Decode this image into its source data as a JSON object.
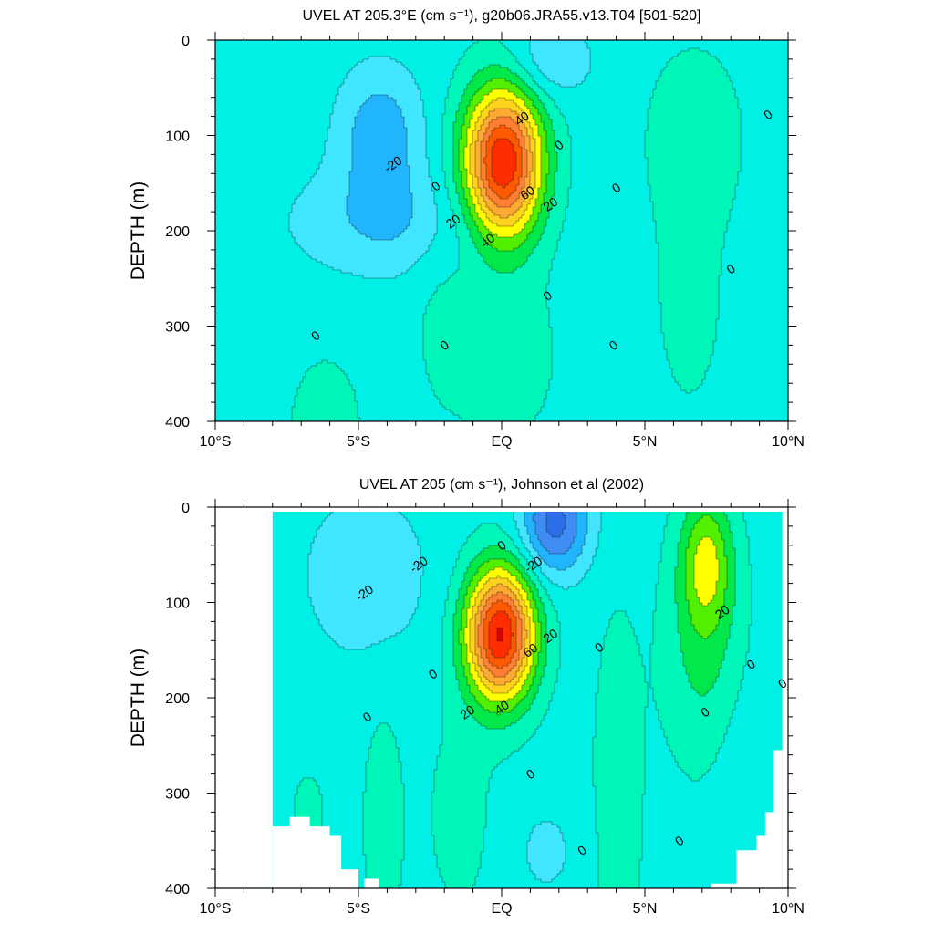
{
  "chart_data": [
    {
      "type": "contour",
      "title": "UVEL AT 205.3°E (cm s⁻¹), g20b06.JRA55.v13.T04 [501-520]",
      "ylabel": "DEPTH (m)",
      "xlabel": "",
      "xlim": [
        -10,
        10
      ],
      "ylim": [
        0,
        400
      ],
      "y_inverted": true,
      "xticks": [
        -10,
        -5,
        0,
        5,
        10
      ],
      "xtick_labels": [
        "10°S",
        "5°S",
        "EQ",
        "5°N",
        "10°N"
      ],
      "yticks": [
        0,
        100,
        200,
        300,
        400
      ],
      "ytick_labels": [
        "0",
        "100",
        "200",
        "300",
        "400"
      ],
      "contour_interval": 10,
      "max_value": 90,
      "core": {
        "lat": 0.0,
        "depth": 125
      },
      "contour_labels": [
        {
          "text": "40",
          "lat": 0.7,
          "depth": 82
        },
        {
          "text": "0",
          "lat": 2.0,
          "depth": 110
        },
        {
          "text": "-20",
          "lat": -3.8,
          "depth": 130
        },
        {
          "text": "0",
          "lat": -2.3,
          "depth": 153
        },
        {
          "text": "60",
          "lat": 0.9,
          "depth": 160
        },
        {
          "text": "0",
          "lat": 4.0,
          "depth": 155
        },
        {
          "text": "20",
          "lat": 1.7,
          "depth": 172
        },
        {
          "text": "20",
          "lat": -1.7,
          "depth": 190
        },
        {
          "text": "40",
          "lat": -0.5,
          "depth": 210
        },
        {
          "text": "0",
          "lat": 9.3,
          "depth": 78
        },
        {
          "text": "0",
          "lat": 8.0,
          "depth": 240
        },
        {
          "text": "0",
          "lat": 1.6,
          "depth": 268
        },
        {
          "text": "0",
          "lat": -6.5,
          "depth": 310
        },
        {
          "text": "0",
          "lat": -2.0,
          "depth": 320
        },
        {
          "text": "0",
          "lat": 3.9,
          "depth": 320
        }
      ]
    },
    {
      "type": "contour",
      "title": "UVEL AT 205 (cm s⁻¹), Johnson et al (2002)",
      "ylabel": "DEPTH (m)",
      "xlabel": "",
      "xlim": [
        -10,
        10
      ],
      "ylim": [
        0,
        400
      ],
      "y_inverted": true,
      "xticks": [
        -10,
        -5,
        0,
        5,
        10
      ],
      "xtick_labels": [
        "10°S",
        "5°S",
        "EQ",
        "5°N",
        "10°N"
      ],
      "yticks": [
        0,
        100,
        200,
        300,
        400
      ],
      "ytick_labels": [
        "0",
        "100",
        "200",
        "300",
        "400"
      ],
      "contour_interval": 10,
      "max_value": 90,
      "core": {
        "lat": -0.1,
        "depth": 130
      },
      "data_lat_range": [
        -8,
        9.8
      ],
      "contour_labels": [
        {
          "text": "0",
          "lat": 0.0,
          "depth": 40
        },
        {
          "text": "-20",
          "lat": -2.9,
          "depth": 60
        },
        {
          "text": "-20",
          "lat": 1.1,
          "depth": 60
        },
        {
          "text": "-20",
          "lat": -4.8,
          "depth": 90
        },
        {
          "text": "20",
          "lat": 7.7,
          "depth": 110
        },
        {
          "text": "20",
          "lat": 1.7,
          "depth": 135
        },
        {
          "text": "0",
          "lat": 3.4,
          "depth": 147
        },
        {
          "text": "60",
          "lat": 1.0,
          "depth": 150
        },
        {
          "text": "0",
          "lat": 8.7,
          "depth": 165
        },
        {
          "text": "0",
          "lat": -2.4,
          "depth": 175
        },
        {
          "text": "0",
          "lat": 9.8,
          "depth": 185
        },
        {
          "text": "40",
          "lat": 0.0,
          "depth": 210
        },
        {
          "text": "0",
          "lat": 7.1,
          "depth": 215
        },
        {
          "text": "0",
          "lat": -4.7,
          "depth": 220
        },
        {
          "text": "20",
          "lat": -1.2,
          "depth": 215
        },
        {
          "text": "0",
          "lat": 1.0,
          "depth": 280
        },
        {
          "text": "0",
          "lat": 2.8,
          "depth": 360
        },
        {
          "text": "0",
          "lat": 6.2,
          "depth": 350
        }
      ]
    }
  ]
}
